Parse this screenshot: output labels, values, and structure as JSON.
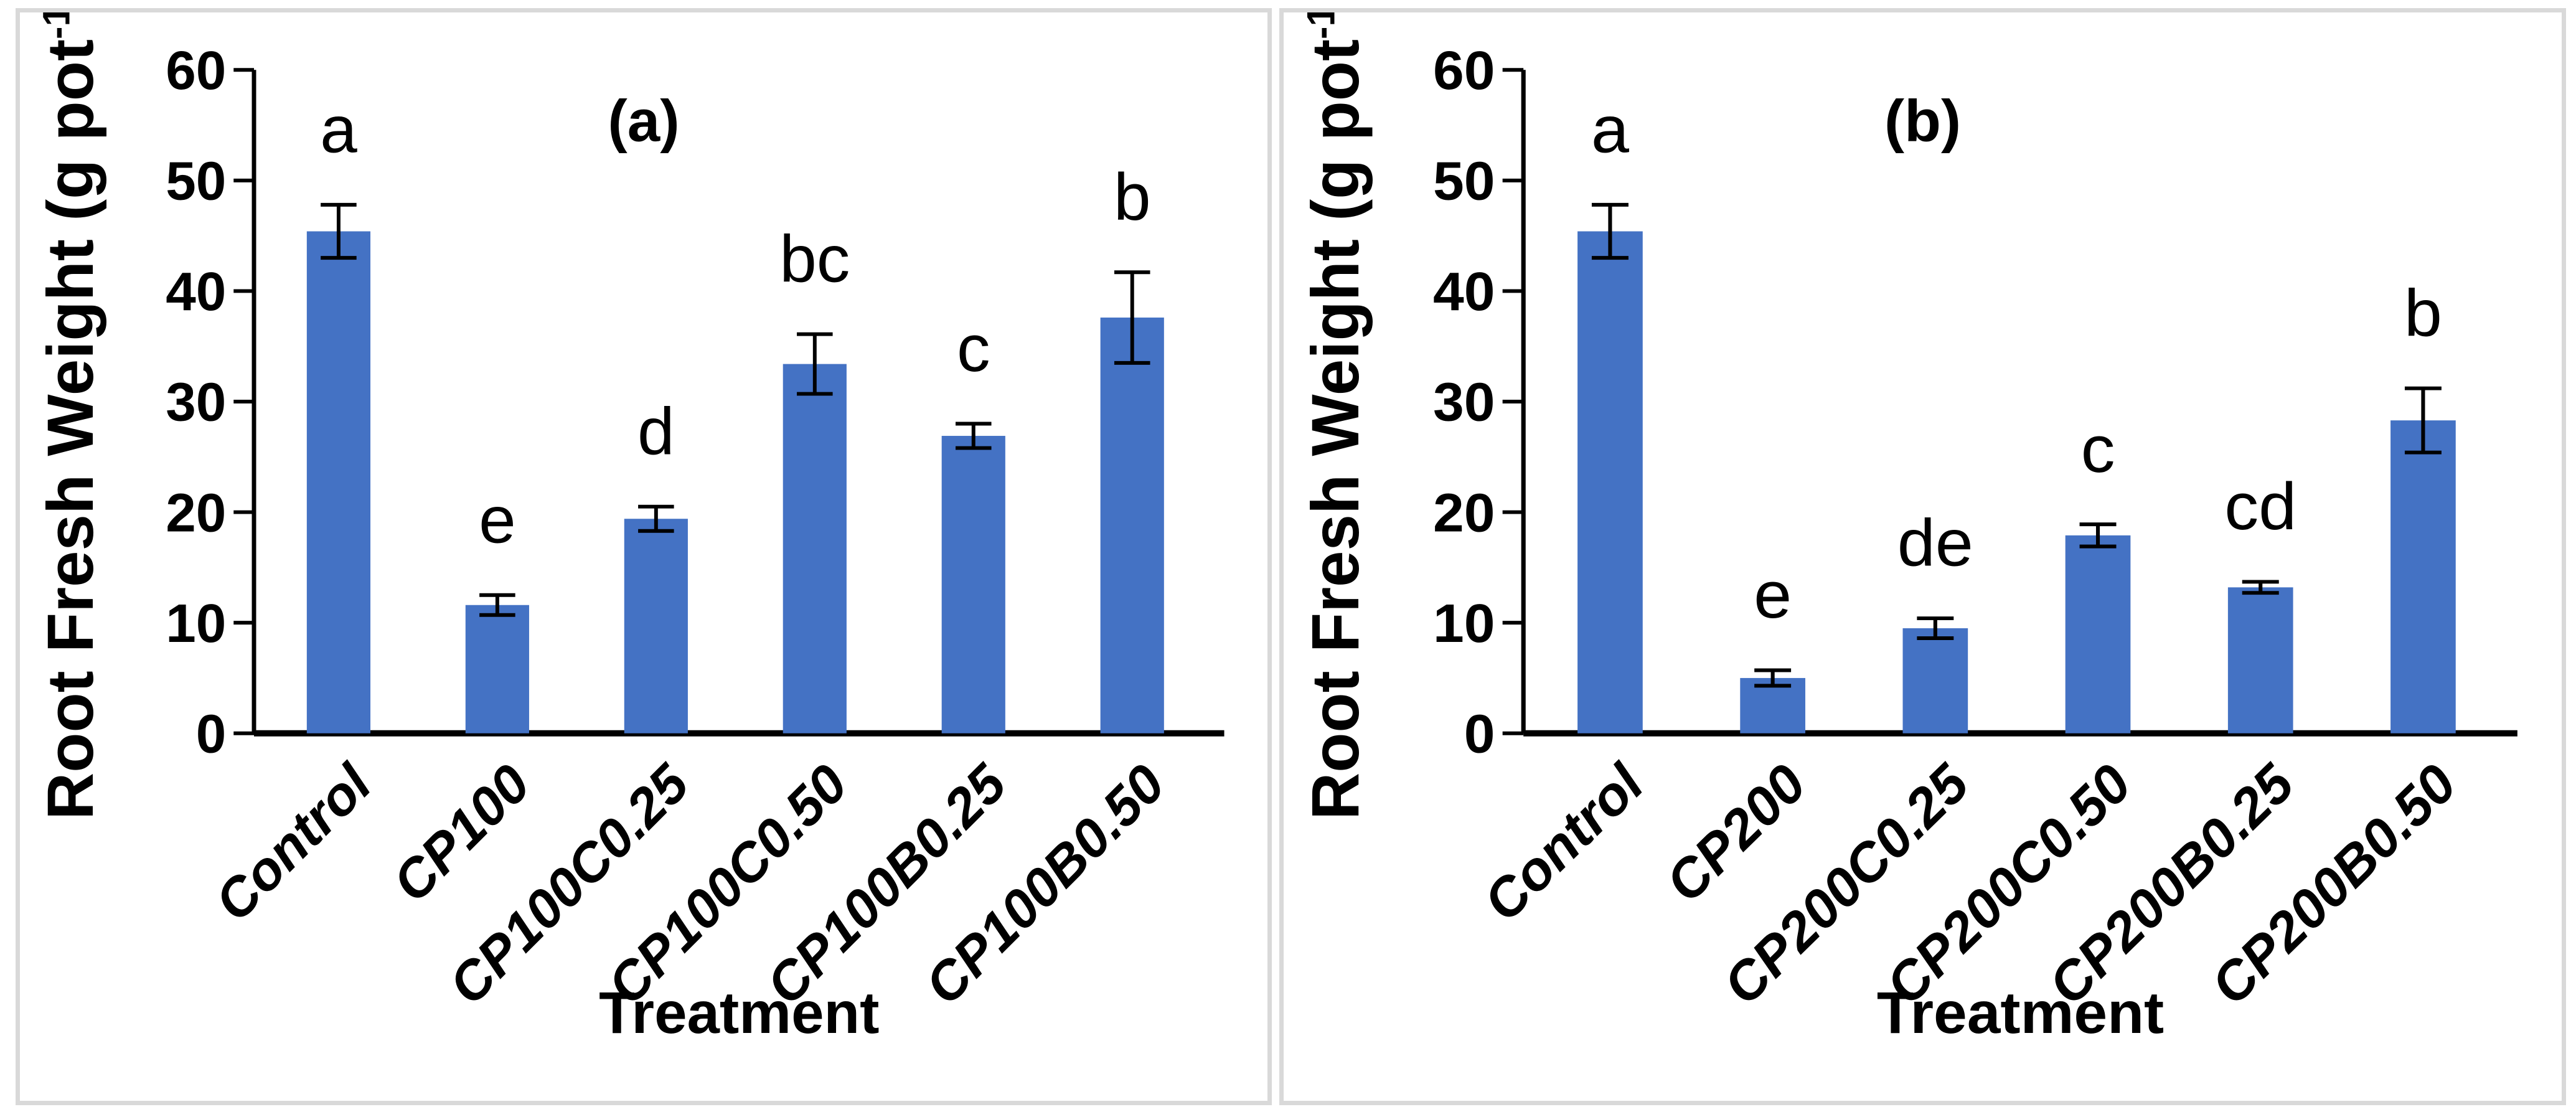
{
  "page": {
    "background_color": "#FFFFFF",
    "panel_background_color": "#FFFFFF",
    "panel_border_color": "#D9D9D9",
    "text_color": "#000000"
  },
  "chart_data": [
    {
      "type": "bar",
      "panel": "a",
      "title": "(a)",
      "ylabel": "Root Fresh Weight (g pot⁻¹)",
      "ylabel_prefix": "Root Fresh Weight (g pot",
      "ylabel_superscript": "-1",
      "ylabel_suffix": ")",
      "xlabel": "Treatment",
      "ylim": [
        0,
        60
      ],
      "yticks": [
        0,
        10,
        20,
        30,
        40,
        50,
        60
      ],
      "grid": false,
      "legend": "none",
      "bar_color": "#4472C4",
      "categories": [
        "Control",
        "CP100",
        "CP100C0.25",
        "CP100C0.50",
        "CP100B0.25",
        "CP100B0.50"
      ],
      "values": [
        45.4,
        11.6,
        19.4,
        33.4,
        26.9,
        37.6
      ],
      "errors": [
        2.4,
        0.9,
        1.1,
        2.7,
        1.1,
        4.1
      ],
      "sig_letters": [
        "a",
        "e",
        "d",
        "bc",
        "c",
        "b"
      ]
    },
    {
      "type": "bar",
      "panel": "b",
      "title": "(b)",
      "ylabel": "Root Fresh Weight (g pot⁻¹)",
      "ylabel_prefix": "Root Fresh Weight (g pot",
      "ylabel_superscript": "-1",
      "ylabel_suffix": ")",
      "xlabel": "Treatment",
      "ylim": [
        0,
        60
      ],
      "yticks": [
        0,
        10,
        20,
        30,
        40,
        50,
        60
      ],
      "grid": false,
      "legend": "none",
      "bar_color": "#4472C4",
      "categories": [
        "Control",
        "CP200",
        "CP200C0.25",
        "CP200C0.50",
        "CP200B0.25",
        "CP200B0.50"
      ],
      "values": [
        45.4,
        5.0,
        9.5,
        17.9,
        13.2,
        28.3
      ],
      "errors": [
        2.4,
        0.7,
        0.9,
        1.0,
        0.5,
        2.9
      ],
      "sig_letters": [
        "a",
        "e",
        "de",
        "c",
        "cd",
        "b"
      ]
    }
  ]
}
